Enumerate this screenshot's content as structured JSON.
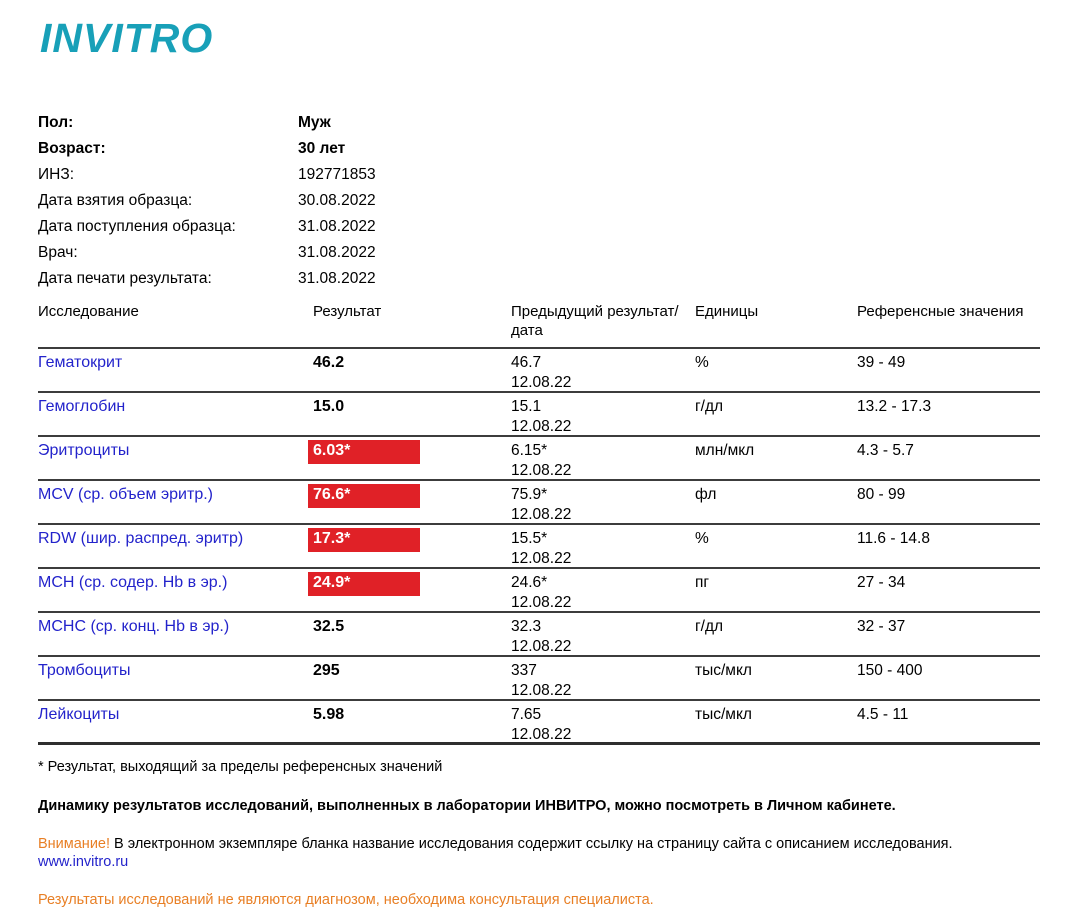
{
  "logo": {
    "text": "INVITRO"
  },
  "colors": {
    "logo_teal": "#18a0b8",
    "link_blue": "#2323cb",
    "flag_red": "#e02127",
    "note_orange": "#e87f25"
  },
  "patient": {
    "rows": [
      {
        "label": "Пол:",
        "value": "Муж",
        "bold": true
      },
      {
        "label": "Возраст:",
        "value": "30 лет",
        "bold": true
      },
      {
        "label": "ИНЗ:",
        "value": "192771853",
        "bold": false
      },
      {
        "label": "Дата взятия образца:",
        "value": "30.08.2022",
        "bold": false
      },
      {
        "label": "Дата поступления образца:",
        "value": "31.08.2022",
        "bold": false
      },
      {
        "label": "Врач:",
        "value": "31.08.2022",
        "bold": false
      },
      {
        "label": "Дата печати результата:",
        "value": "31.08.2022",
        "bold": false
      }
    ]
  },
  "table": {
    "headers": [
      "Исследование",
      "Результат",
      "Предыдущий результат/дата",
      "Единицы",
      "Референсные значения"
    ],
    "rows": [
      {
        "name": "Гематокрит",
        "result": "46.2",
        "flagged": false,
        "prev": "46.7",
        "prev_date": "12.08.22",
        "units": "%",
        "ref": "39 - 49"
      },
      {
        "name": "Гемоглобин",
        "result": "15.0",
        "flagged": false,
        "prev": "15.1",
        "prev_date": "12.08.22",
        "units": "г/дл",
        "ref": "13.2 - 17.3"
      },
      {
        "name": "Эритроциты",
        "result": "6.03*",
        "flagged": true,
        "prev": "6.15*",
        "prev_date": "12.08.22",
        "units": "млн/мкл",
        "ref": "4.3 - 5.7"
      },
      {
        "name": "MCV (ср. объем эритр.)",
        "result": "76.6*",
        "flagged": true,
        "prev": "75.9*",
        "prev_date": "12.08.22",
        "units": "фл",
        "ref": "80 - 99"
      },
      {
        "name": "RDW (шир. распред. эритр)",
        "result": "17.3*",
        "flagged": true,
        "prev": "15.5*",
        "prev_date": "12.08.22",
        "units": "%",
        "ref": "11.6 - 14.8"
      },
      {
        "name": "MCH (ср. содер. Hb в эр.)",
        "result": "24.9*",
        "flagged": true,
        "prev": "24.6*",
        "prev_date": "12.08.22",
        "units": "пг",
        "ref": "27 - 34"
      },
      {
        "name": "MCHC (ср. конц. Hb в эр.)",
        "result": "32.5",
        "flagged": false,
        "prev": "32.3",
        "prev_date": "12.08.22",
        "units": "г/дл",
        "ref": "32 - 37"
      },
      {
        "name": "Тромбоциты",
        "result": "295",
        "flagged": false,
        "prev": "337",
        "prev_date": "12.08.22",
        "units": "тыс/мкл",
        "ref": "150 - 400"
      },
      {
        "name": "Лейкоциты",
        "result": "5.98",
        "flagged": false,
        "prev": "7.65",
        "prev_date": "12.08.22",
        "units": "тыс/мкл",
        "ref": "4.5 - 11"
      }
    ]
  },
  "footnotes": {
    "asterisk": "* Результат, выходящий за пределы референсных значений",
    "dynamics": "Динамику результатов исследований, выполненных в лаборатории ИНВИТРО, можно посмотреть в Личном кабинете.",
    "attention_label": "Внимание!",
    "attention_text": " В электронном экземпляре бланка название исследования содержит ссылку на страницу сайта с описанием исследования. ",
    "link": "www.invitro.ru",
    "disclaimer": "Результаты исследований не являются диагнозом, необходима консультация специалиста."
  }
}
